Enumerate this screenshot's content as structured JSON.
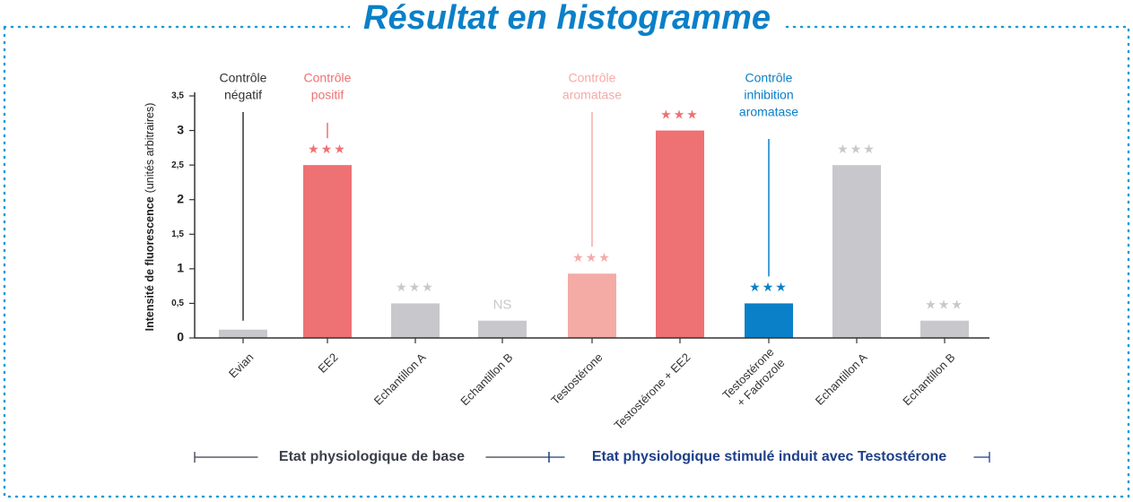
{
  "chart_data": {
    "type": "bar",
    "title": "Résultat en histogramme",
    "y_label": "Intensité de fluorescence",
    "y_label_note": "(unités arbitraires)",
    "categories": [
      "Evian",
      "EE2",
      "Echantillon A",
      "Echantillon B",
      "Testostérone",
      "Testostérone + EE2",
      [
        "Testostérone",
        "+ Fadrozole"
      ],
      "Echantillon A",
      "Echantillon B"
    ],
    "values": [
      0.12,
      2.5,
      0.5,
      0.25,
      0.93,
      3.0,
      0.5,
      2.5,
      0.25
    ],
    "colors": [
      "#c8c7cc",
      "#ee7173",
      "#c8c7cc",
      "#c8c7cc",
      "#f4aba6",
      "#ee7173",
      "#0a80c8",
      "#c8c7cc",
      "#c8c7cc"
    ],
    "significance": [
      null,
      "★★★",
      "★★★",
      "NS",
      "★★★",
      "★★★",
      "★★★",
      "★★★",
      "★★★"
    ],
    "ylim": [
      0,
      3.5
    ],
    "yticks": [
      0,
      {
        "value": 0.5,
        "label": "0,5"
      },
      1,
      {
        "value": 1.5,
        "label": "1,5"
      },
      2,
      {
        "value": 2.5,
        "label": "2,5"
      },
      3,
      {
        "value": 3.5,
        "label": "3,5"
      }
    ],
    "annotations": [
      {
        "lines": [
          "Contrôle",
          "négatif"
        ],
        "color": "#333333"
      },
      {
        "lines": [
          "Contrôle",
          "positif"
        ],
        "color": "#ee7173"
      },
      {
        "lines": [
          "Contrôle",
          "aromatase"
        ],
        "color": "#f4aba6"
      },
      {
        "lines": [
          "Contrôle",
          "inhibition",
          "aromatase"
        ],
        "color": "#0a80c8"
      }
    ],
    "groups": [
      {
        "label": "Etat physiologique de base",
        "color": "#3a3f4a"
      },
      {
        "label": "Etat physiologique stimulé induit avec Testostérone",
        "color": "#1d3f8a"
      }
    ]
  }
}
